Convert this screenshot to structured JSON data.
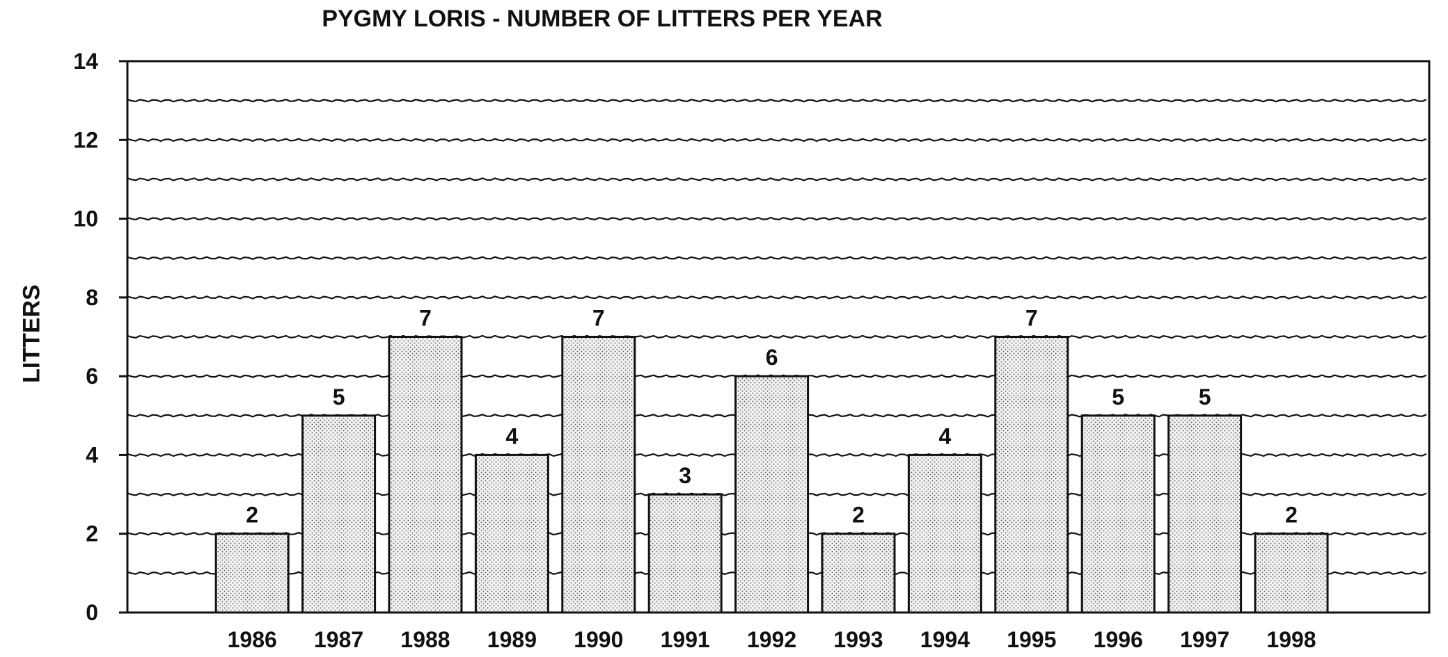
{
  "chart_data": {
    "type": "bar",
    "title": "PYGMY LORIS - NUMBER OF LITTERS PER YEAR",
    "xlabel": "",
    "ylabel": "LITTERS",
    "categories": [
      "1986",
      "1987",
      "1988",
      "1989",
      "1990",
      "1991",
      "1992",
      "1993",
      "1994",
      "1995",
      "1996",
      "1997",
      "1998"
    ],
    "values": [
      2,
      5,
      7,
      4,
      7,
      3,
      6,
      2,
      4,
      7,
      5,
      5,
      2
    ],
    "ylim": [
      0,
      14
    ],
    "yticks": [
      0,
      2,
      4,
      6,
      8,
      10,
      12,
      14
    ],
    "grid": true,
    "data_labels": true,
    "bar_fill": "#e6e6e6",
    "bar_pattern": "stipple",
    "line_color": "#111111"
  }
}
